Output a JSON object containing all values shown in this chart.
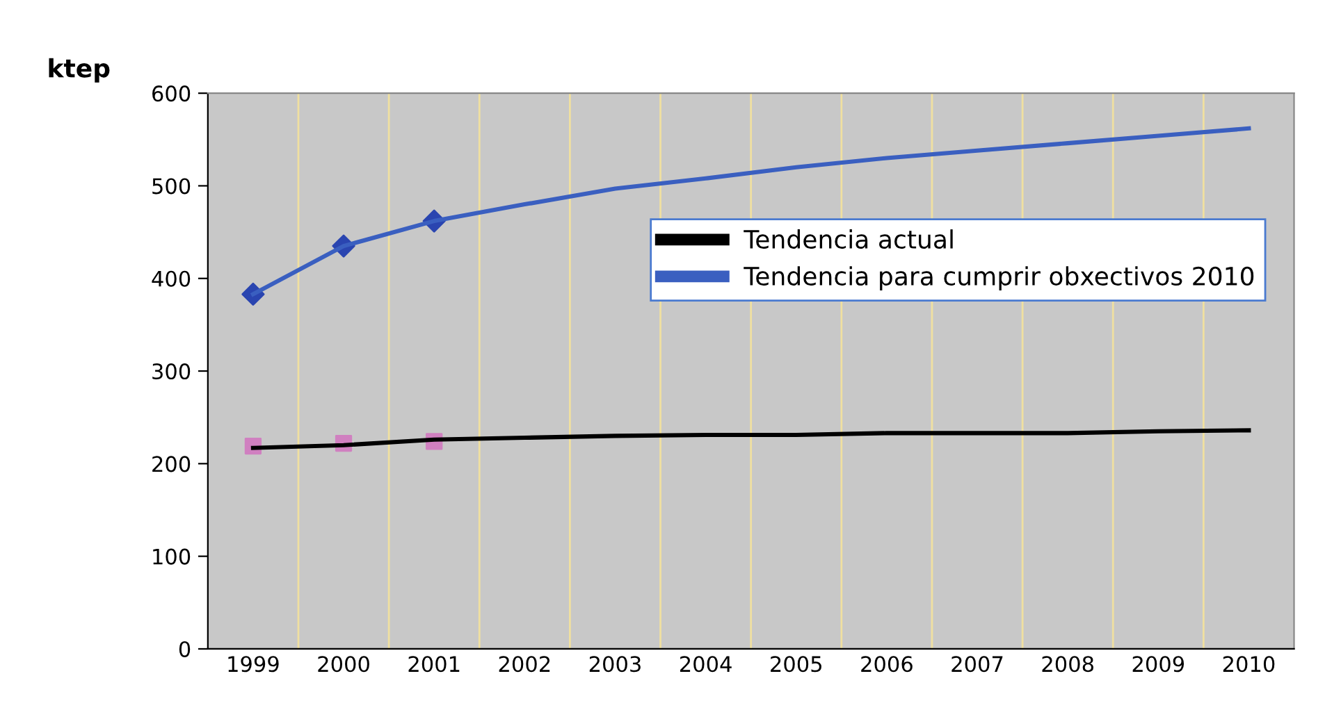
{
  "chart_data": {
    "type": "line",
    "ylabel": "ktep",
    "categories": [
      "1999",
      "2000",
      "2001",
      "2002",
      "2003",
      "2004",
      "2005",
      "2006",
      "2007",
      "2008",
      "2009",
      "2010"
    ],
    "series": [
      {
        "name": "Tendencia actual",
        "color": "#000000",
        "marker": "none",
        "values": [
          217,
          220,
          226,
          228,
          230,
          231,
          231,
          233,
          233,
          233,
          235,
          236
        ]
      },
      {
        "name": "Tendencia para cumprir obxectivos 2010",
        "color": "#3a5fc0",
        "marker": "none",
        "values": [
          383,
          435,
          462,
          480,
          497,
          508,
          520,
          530,
          538,
          546,
          554,
          562
        ]
      },
      {
        "type": "scatter",
        "color": "#d080c0",
        "marker": "square",
        "values": [
          219,
          222,
          224,
          null,
          null,
          null,
          null,
          null,
          null,
          null,
          null,
          null
        ]
      },
      {
        "type": "scatter",
        "color": "#2a45b0",
        "marker": "diamond",
        "values": [
          383,
          435,
          462,
          null,
          null,
          null,
          null,
          null,
          null,
          null,
          null,
          null
        ]
      }
    ],
    "ylim": [
      0,
      600
    ],
    "yticks": [
      0,
      100,
      200,
      300,
      400,
      500,
      600
    ],
    "grid": "x",
    "legend": "right"
  }
}
